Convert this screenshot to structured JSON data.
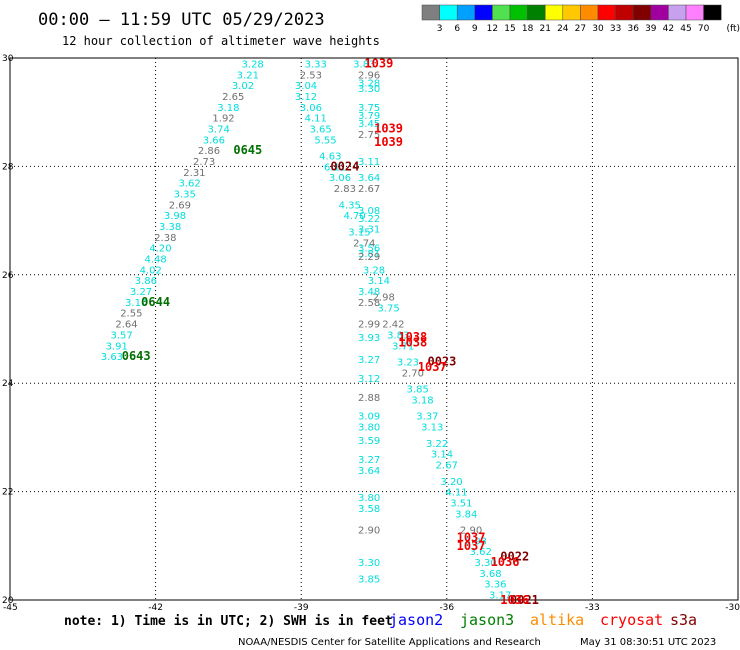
{
  "header": {
    "title": "00:00 – 11:59 UTC 05/29/2023",
    "subtitle": "12 hour collection of altimeter wave heights"
  },
  "legend": {
    "labels": [
      "3",
      "6",
      "9",
      "12",
      "15",
      "18",
      "21",
      "24",
      "27",
      "30",
      "33",
      "36",
      "39",
      "42",
      "45",
      "70"
    ],
    "unit": "(ft)",
    "colors": [
      "#7f7f7f",
      "#00ffff",
      "#00a0ff",
      "#0000ff",
      "#50e050",
      "#00c000",
      "#008000",
      "#ffff00",
      "#ffc800",
      "#ff8c00",
      "#ff0000",
      "#c00000",
      "#800000",
      "#a000a0",
      "#c8a0f0",
      "#ff80ff",
      "#000000"
    ]
  },
  "footer": {
    "note": "note: 1) Time is in UTC; 2) SWH is in feet",
    "satellites": [
      {
        "name": "jason2",
        "color": "#0000ff"
      },
      {
        "name": "jason3",
        "color": "#008000"
      },
      {
        "name": "altika",
        "color": "#ff8c00"
      },
      {
        "name": "cryosat",
        "color": "#ff0000"
      },
      {
        "name": "s3a",
        "color": "#800000"
      }
    ],
    "credit": "NOAA/NESDIS Center for Satellite Applications and Research",
    "timestamp": "May 31 08:30:51 UTC 2023"
  },
  "chart_data": {
    "type": "scatter",
    "xlim": [
      -45,
      -30
    ],
    "ylim": [
      20,
      30
    ],
    "x_ticks": [
      -45,
      -42,
      -39,
      -36,
      -33,
      -30
    ],
    "y_ticks": [
      20,
      22,
      24,
      26,
      28,
      30
    ],
    "x_tick_labels": [
      "-45",
      "-42",
      "-39",
      "-36",
      "-33",
      "-30"
    ],
    "y_tick_labels": [
      "20",
      "22",
      "24",
      "26",
      "28",
      "30"
    ],
    "grid": true,
    "point_colors": {
      "c": "#00dede",
      "g": "#707070",
      "j3": "#007000",
      "cs": "#ee0000",
      "s3": "#800000"
    },
    "points": [
      {
        "x": -40.0,
        "y": 29.9,
        "t": "3.28",
        "c": "c"
      },
      {
        "x": -40.1,
        "y": 29.7,
        "t": "3.21",
        "c": "c"
      },
      {
        "x": -40.2,
        "y": 29.5,
        "t": "3.02",
        "c": "c"
      },
      {
        "x": -40.4,
        "y": 29.3,
        "t": "2.65",
        "c": "g"
      },
      {
        "x": -40.5,
        "y": 29.1,
        "t": "3.18",
        "c": "c"
      },
      {
        "x": -40.6,
        "y": 28.9,
        "t": "1.92",
        "c": "g"
      },
      {
        "x": -40.7,
        "y": 28.7,
        "t": "3.74",
        "c": "c"
      },
      {
        "x": -40.8,
        "y": 28.5,
        "t": "3.66",
        "c": "c"
      },
      {
        "x": -40.9,
        "y": 28.3,
        "t": "2.86",
        "c": "g"
      },
      {
        "x": -41.0,
        "y": 28.1,
        "t": "2.73",
        "c": "g"
      },
      {
        "x": -41.2,
        "y": 27.9,
        "t": "2.31",
        "c": "g"
      },
      {
        "x": -41.3,
        "y": 27.7,
        "t": "3.62",
        "c": "c"
      },
      {
        "x": -41.4,
        "y": 27.5,
        "t": "3.35",
        "c": "c"
      },
      {
        "x": -41.5,
        "y": 27.3,
        "t": "2.69",
        "c": "g"
      },
      {
        "x": -41.6,
        "y": 27.1,
        "t": "3.98",
        "c": "c"
      },
      {
        "x": -41.7,
        "y": 26.9,
        "t": "3.38",
        "c": "c"
      },
      {
        "x": -41.8,
        "y": 26.7,
        "t": "2.38",
        "c": "g"
      },
      {
        "x": -41.9,
        "y": 26.5,
        "t": "4.20",
        "c": "c"
      },
      {
        "x": -42.0,
        "y": 26.3,
        "t": "4.48",
        "c": "c"
      },
      {
        "x": -42.1,
        "y": 26.1,
        "t": "4.02",
        "c": "c"
      },
      {
        "x": -42.2,
        "y": 25.9,
        "t": "3.86",
        "c": "c"
      },
      {
        "x": -42.3,
        "y": 25.7,
        "t": "3.27",
        "c": "c"
      },
      {
        "x": -42.4,
        "y": 25.5,
        "t": "3.10",
        "c": "c"
      },
      {
        "x": -42.5,
        "y": 25.3,
        "t": "2.55",
        "c": "g"
      },
      {
        "x": -42.6,
        "y": 25.1,
        "t": "2.64",
        "c": "g"
      },
      {
        "x": -42.7,
        "y": 24.9,
        "t": "3.57",
        "c": "c"
      },
      {
        "x": -42.8,
        "y": 24.7,
        "t": "3.91",
        "c": "c"
      },
      {
        "x": -42.9,
        "y": 24.5,
        "t": "3.63",
        "c": "c"
      },
      {
        "x": -40.1,
        "y": 28.3,
        "t": "0645",
        "c": "j3",
        "time": true
      },
      {
        "x": -42.0,
        "y": 25.5,
        "t": "0644",
        "c": "j3",
        "time": true
      },
      {
        "x": -42.4,
        "y": 24.5,
        "t": "0643",
        "c": "j3",
        "time": true
      },
      {
        "x": -38.7,
        "y": 29.9,
        "t": "3.33",
        "c": "c"
      },
      {
        "x": -38.8,
        "y": 29.7,
        "t": "2.53",
        "c": "g"
      },
      {
        "x": -38.9,
        "y": 29.5,
        "t": "3.04",
        "c": "c"
      },
      {
        "x": -38.9,
        "y": 29.3,
        "t": "3.12",
        "c": "c"
      },
      {
        "x": -38.8,
        "y": 29.1,
        "t": "3.06",
        "c": "c"
      },
      {
        "x": -38.7,
        "y": 28.9,
        "t": "4.11",
        "c": "c"
      },
      {
        "x": -38.6,
        "y": 28.7,
        "t": "3.65",
        "c": "c"
      },
      {
        "x": -38.5,
        "y": 28.5,
        "t": "5.55",
        "c": "c"
      },
      {
        "x": -38.4,
        "y": 28.2,
        "t": "4.63",
        "c": "c"
      },
      {
        "x": -38.3,
        "y": 28.0,
        "t": "6.11",
        "c": "c"
      },
      {
        "x": -38.2,
        "y": 27.8,
        "t": "3.06",
        "c": "c"
      },
      {
        "x": -38.1,
        "y": 27.6,
        "t": "2.83",
        "c": "g"
      },
      {
        "x": -38.0,
        "y": 27.3,
        "t": "4.35",
        "c": "c"
      },
      {
        "x": -37.9,
        "y": 27.1,
        "t": "4.70",
        "c": "c"
      },
      {
        "x": -37.8,
        "y": 26.8,
        "t": "3.15",
        "c": "c"
      },
      {
        "x": -37.7,
        "y": 26.6,
        "t": "2.74",
        "c": "g"
      },
      {
        "x": -37.6,
        "y": 26.4,
        "t": "3.81",
        "c": "c"
      },
      {
        "x": -37.5,
        "y": 26.1,
        "t": "3.28",
        "c": "c"
      },
      {
        "x": -37.4,
        "y": 25.9,
        "t": "3.14",
        "c": "c"
      },
      {
        "x": -37.3,
        "y": 25.6,
        "t": "2.98",
        "c": "g"
      },
      {
        "x": -37.2,
        "y": 25.4,
        "t": "3.75",
        "c": "c"
      },
      {
        "x": -37.1,
        "y": 25.1,
        "t": "2.42",
        "c": "g"
      },
      {
        "x": -37.0,
        "y": 24.9,
        "t": "3.83",
        "c": "c"
      },
      {
        "x": -36.9,
        "y": 24.7,
        "t": "3.71",
        "c": "c"
      },
      {
        "x": -36.8,
        "y": 24.4,
        "t": "3.23",
        "c": "c"
      },
      {
        "x": -36.7,
        "y": 24.2,
        "t": "2.70",
        "c": "g"
      },
      {
        "x": -36.6,
        "y": 23.9,
        "t": "3.85",
        "c": "c"
      },
      {
        "x": -36.5,
        "y": 23.7,
        "t": "3.18",
        "c": "c"
      },
      {
        "x": -36.4,
        "y": 23.4,
        "t": "3.37",
        "c": "c"
      },
      {
        "x": -36.3,
        "y": 23.2,
        "t": "3.13",
        "c": "c"
      },
      {
        "x": -36.2,
        "y": 22.9,
        "t": "3.22",
        "c": "c"
      },
      {
        "x": -36.1,
        "y": 22.7,
        "t": "3.14",
        "c": "c"
      },
      {
        "x": -36.0,
        "y": 22.5,
        "t": "2.67",
        "c": "c"
      },
      {
        "x": -35.9,
        "y": 22.2,
        "t": "3.20",
        "c": "c"
      },
      {
        "x": -35.8,
        "y": 22.0,
        "t": "4.11",
        "c": "c"
      },
      {
        "x": -35.7,
        "y": 21.8,
        "t": "3.51",
        "c": "c"
      },
      {
        "x": -35.6,
        "y": 21.6,
        "t": "3.84",
        "c": "c"
      },
      {
        "x": -35.5,
        "y": 21.3,
        "t": "2.90",
        "c": "g"
      },
      {
        "x": -35.4,
        "y": 21.1,
        "t": "3.93",
        "c": "c"
      },
      {
        "x": -35.3,
        "y": 20.9,
        "t": "3.62",
        "c": "c"
      },
      {
        "x": -35.2,
        "y": 20.7,
        "t": "3.30",
        "c": "c"
      },
      {
        "x": -35.1,
        "y": 20.5,
        "t": "3.68",
        "c": "c"
      },
      {
        "x": -35.0,
        "y": 20.3,
        "t": "3.36",
        "c": "c"
      },
      {
        "x": -34.9,
        "y": 20.1,
        "t": "3.17",
        "c": "c"
      },
      {
        "x": -38.1,
        "y": 28.0,
        "t": "0024",
        "c": "s3",
        "time": true
      },
      {
        "x": -36.1,
        "y": 24.4,
        "t": "0023",
        "c": "s3",
        "time": true
      },
      {
        "x": -34.6,
        "y": 20.8,
        "t": "0022",
        "c": "s3",
        "time": true
      },
      {
        "x": -34.4,
        "y": 20.0,
        "t": "0021",
        "c": "s3",
        "time": true
      },
      {
        "x": -37.7,
        "y": 29.9,
        "t": "3.83",
        "c": "c"
      },
      {
        "x": -37.6,
        "y": 29.7,
        "t": "2.96",
        "c": "g"
      },
      {
        "x": -37.6,
        "y": 29.55,
        "t": "3.28",
        "c": "c"
      },
      {
        "x": -37.6,
        "y": 29.45,
        "t": "3.30",
        "c": "c"
      },
      {
        "x": -37.6,
        "y": 29.1,
        "t": "3.75",
        "c": "c"
      },
      {
        "x": -37.6,
        "y": 28.95,
        "t": "3.79",
        "c": "c"
      },
      {
        "x": -37.6,
        "y": 28.8,
        "t": "3.45",
        "c": "c"
      },
      {
        "x": -37.6,
        "y": 28.6,
        "t": "2.75",
        "c": "g"
      },
      {
        "x": -37.6,
        "y": 28.1,
        "t": "3.11",
        "c": "c"
      },
      {
        "x": -37.6,
        "y": 27.8,
        "t": "3.64",
        "c": "c"
      },
      {
        "x": -37.6,
        "y": 27.6,
        "t": "2.67",
        "c": "g"
      },
      {
        "x": -37.6,
        "y": 27.2,
        "t": "3.08",
        "c": "c"
      },
      {
        "x": -37.6,
        "y": 27.05,
        "t": "3.22",
        "c": "c"
      },
      {
        "x": -37.6,
        "y": 26.85,
        "t": "3.31",
        "c": "c"
      },
      {
        "x": -37.6,
        "y": 26.5,
        "t": "3.56",
        "c": "c"
      },
      {
        "x": -37.6,
        "y": 26.35,
        "t": "2.29",
        "c": "g"
      },
      {
        "x": -37.6,
        "y": 25.7,
        "t": "3.48",
        "c": "c"
      },
      {
        "x": -37.6,
        "y": 25.5,
        "t": "2.58",
        "c": "g"
      },
      {
        "x": -37.6,
        "y": 25.1,
        "t": "2.99",
        "c": "g"
      },
      {
        "x": -37.6,
        "y": 24.85,
        "t": "3.93",
        "c": "c"
      },
      {
        "x": -37.6,
        "y": 24.45,
        "t": "3.27",
        "c": "c"
      },
      {
        "x": -37.6,
        "y": 24.1,
        "t": "3.12",
        "c": "c"
      },
      {
        "x": -37.6,
        "y": 23.75,
        "t": "2.88",
        "c": "g"
      },
      {
        "x": -37.6,
        "y": 23.4,
        "t": "3.09",
        "c": "c"
      },
      {
        "x": -37.6,
        "y": 23.2,
        "t": "3.80",
        "c": "c"
      },
      {
        "x": -37.6,
        "y": 22.95,
        "t": "3.59",
        "c": "c"
      },
      {
        "x": -37.6,
        "y": 22.6,
        "t": "3.27",
        "c": "c"
      },
      {
        "x": -37.6,
        "y": 22.4,
        "t": "3.64",
        "c": "c"
      },
      {
        "x": -37.6,
        "y": 21.9,
        "t": "3.80",
        "c": "c"
      },
      {
        "x": -37.6,
        "y": 21.7,
        "t": "3.58",
        "c": "c"
      },
      {
        "x": -37.6,
        "y": 21.3,
        "t": "2.90",
        "c": "g"
      },
      {
        "x": -37.6,
        "y": 20.7,
        "t": "3.30",
        "c": "c"
      },
      {
        "x": -37.6,
        "y": 20.4,
        "t": "3.85",
        "c": "c"
      },
      {
        "x": -37.4,
        "y": 29.9,
        "t": "1039",
        "c": "cs",
        "time": true
      },
      {
        "x": -37.2,
        "y": 28.7,
        "t": "1039",
        "c": "cs",
        "time": true
      },
      {
        "x": -37.2,
        "y": 28.45,
        "t": "1039",
        "c": "cs",
        "time": true
      },
      {
        "x": -36.7,
        "y": 24.85,
        "t": "1038",
        "c": "cs",
        "time": true
      },
      {
        "x": -36.7,
        "y": 24.75,
        "t": "1038",
        "c": "cs",
        "time": true
      },
      {
        "x": -36.3,
        "y": 24.3,
        "t": "1037",
        "c": "cs",
        "time": true
      },
      {
        "x": -35.5,
        "y": 21.15,
        "t": "1037",
        "c": "cs",
        "time": true
      },
      {
        "x": -35.5,
        "y": 21.0,
        "t": "1037",
        "c": "cs",
        "time": true
      },
      {
        "x": -34.8,
        "y": 20.7,
        "t": "1036",
        "c": "cs",
        "time": true
      },
      {
        "x": -34.6,
        "y": 20.0,
        "t": "1036",
        "c": "cs",
        "time": true
      }
    ]
  }
}
